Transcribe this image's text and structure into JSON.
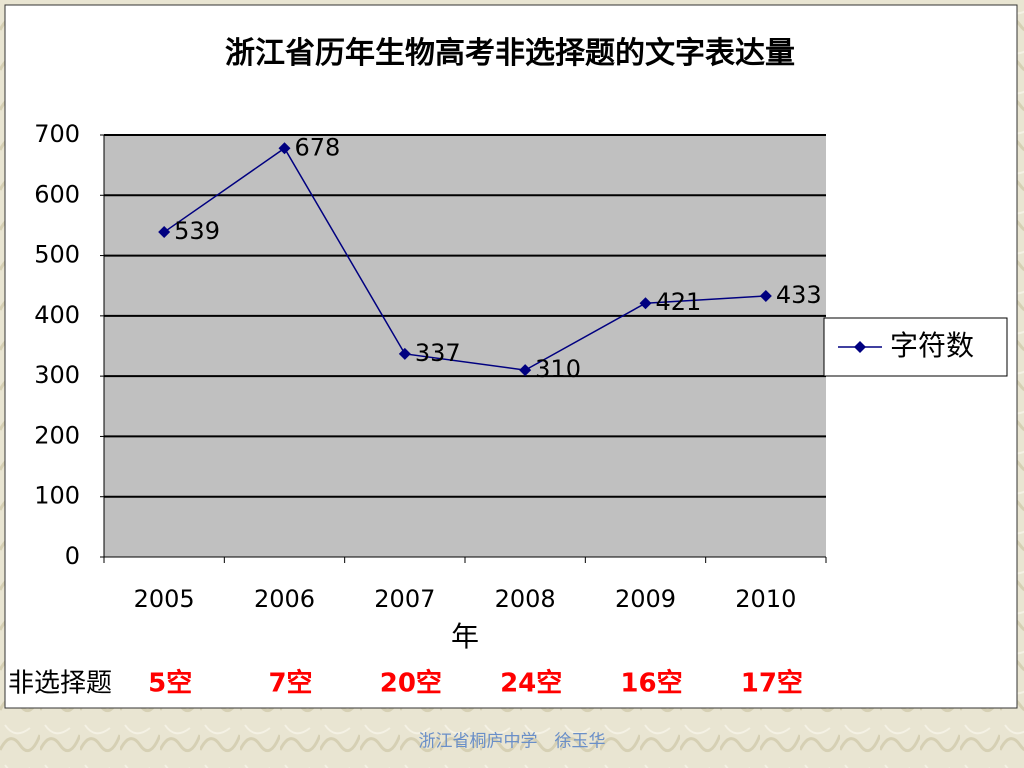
{
  "chart_data": {
    "type": "line",
    "title": "浙江省历年生物高考非选择题的文字表达量",
    "x_label": "年",
    "categories": [
      "2005",
      "2006",
      "2007",
      "2008",
      "2009",
      "2010"
    ],
    "series": [
      {
        "name": "字符数",
        "color": "#000080",
        "values": [
          539,
          678,
          337,
          310,
          421,
          433
        ]
      }
    ],
    "ylim": [
      0,
      700
    ],
    "yticks": [
      0,
      100,
      200,
      300,
      400,
      500,
      600,
      700
    ],
    "grid": true,
    "legend": "right"
  },
  "slide": {
    "row_label": "非选择题",
    "blanks": [
      "5空",
      "7空",
      "20空",
      "24空",
      "16空",
      "17空"
    ],
    "footer": "浙江省桐庐中学　徐玉华"
  }
}
